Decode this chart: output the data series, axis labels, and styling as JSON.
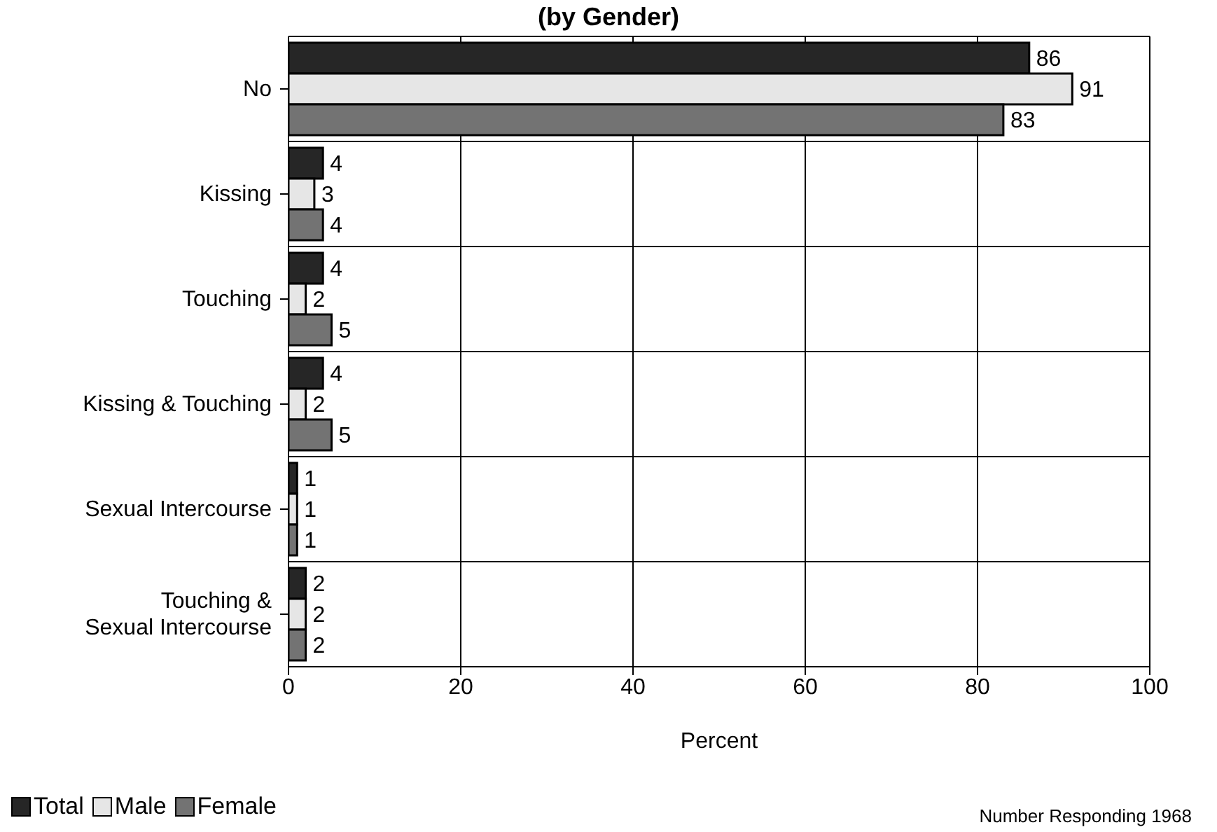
{
  "chart_data": {
    "type": "bar",
    "orientation": "horizontal",
    "title": "(by Gender)",
    "xlabel": "Percent",
    "categories": [
      "No",
      "Kissing",
      "Touching",
      "Kissing & Touching",
      "Sexual Intercourse",
      "Touching &\nSexual Intercourse"
    ],
    "series": [
      {
        "name": "Total",
        "color": "#262626",
        "values": [
          86,
          4,
          4,
          4,
          1,
          2
        ]
      },
      {
        "name": "Male",
        "color": "#e6e6e6",
        "values": [
          91,
          3,
          2,
          2,
          1,
          2
        ]
      },
      {
        "name": "Female",
        "color": "#737373",
        "values": [
          83,
          4,
          5,
          5,
          1,
          2
        ]
      }
    ],
    "xlim": [
      0,
      100
    ],
    "xticks": [
      0,
      20,
      40,
      60,
      80,
      100
    ],
    "grid": true,
    "legend": "bottom left",
    "data_labels": true,
    "annotations": [
      "Number Responding 1968"
    ]
  }
}
